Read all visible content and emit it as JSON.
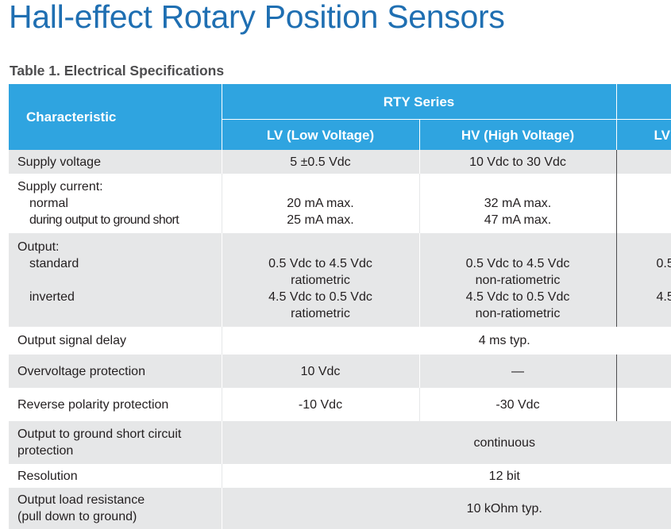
{
  "header": {
    "title": "Hall-effect Rotary Position Sensors",
    "caption": "Table 1. Electrical Specifications"
  },
  "table": {
    "col_characteristic": "Characteristic",
    "group_rty": "RTY Series",
    "col_lv": "LV (Low Voltage)",
    "col_hv": "HV (High Voltage)",
    "col_lv2": "LV",
    "rows": {
      "supply_voltage": {
        "label": "Supply voltage",
        "lv": "5 ±0.5 Vdc",
        "hv": "10 Vdc to 30 Vdc"
      },
      "supply_current": {
        "label": "Supply current:",
        "normal_label": "normal",
        "short_label": "during output to ground  short",
        "lv_normal": "20 mA max.",
        "lv_short": "25 mA max.",
        "hv_normal": "32 mA max.",
        "hv_short": "47 mA max."
      },
      "output": {
        "label": "Output:",
        "standard_label": "standard",
        "inverted_label": "inverted",
        "lv_standard": "0.5 Vdc to 4.5 Vdc",
        "lv_standard_note": "ratiometric",
        "lv_inverted": "4.5 Vdc to 0.5 Vdc",
        "lv_inverted_note": "ratiometric",
        "hv_standard": "0.5 Vdc to 4.5 Vdc",
        "hv_standard_note": "non-ratiometric",
        "hv_inverted": "4.5 Vdc to 0.5 Vdc",
        "hv_inverted_note": "non-ratiometric",
        "lv2_standard": "0.5",
        "lv2_inverted": "4.5"
      },
      "signal_delay": {
        "label": "Output signal delay",
        "value": "4 ms typ."
      },
      "overvoltage": {
        "label": "Overvoltage protection",
        "lv": "10 Vdc",
        "hv": "—"
      },
      "reverse_polarity": {
        "label": "Reverse polarity protection",
        "lv": "-10 Vdc",
        "hv": "-30 Vdc"
      },
      "short_circuit": {
        "label_line1": "Output to ground short circuit",
        "label_line2": "protection",
        "value": "continuous"
      },
      "resolution": {
        "label": "Resolution",
        "value": "12 bit"
      },
      "load_resistance": {
        "label_line1": "Output load resistance",
        "label_line2": "(pull down to ground)",
        "value": "10 kOhm typ."
      }
    }
  }
}
